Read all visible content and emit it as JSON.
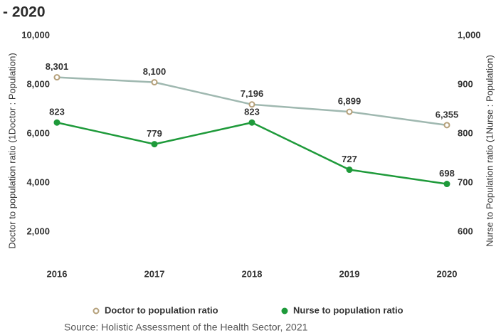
{
  "chart_data": {
    "type": "line",
    "title": "- 2020",
    "y_label": "Doctor to population ratio (1Doctor : Population)",
    "y2_label": "Nurse to Population ratio (1Nurse : Population)",
    "source": "Source: Holistic Assessment of the Health Sector, 2021",
    "categories": [
      "2016",
      "2017",
      "2018",
      "2019",
      "2020"
    ],
    "series": [
      {
        "name": "Doctor to population ratio",
        "color": "#9fb8b0",
        "marker_color": "#b5a07a",
        "marker": "hollow",
        "values": [
          8301,
          8100,
          7196,
          6899,
          6355
        ],
        "value_labels": [
          "8,301",
          "8,100",
          "7,196",
          "6,899",
          "6,355"
        ]
      },
      {
        "name": "Nurse to population ratio",
        "color": "#1e9a3a",
        "marker_color": "#1e9a3a",
        "marker": "filled",
        "axis": "y2",
        "values": [
          823,
          779,
          823,
          727,
          698
        ],
        "value_labels": [
          "823",
          "779",
          "823",
          "727",
          "698"
        ]
      }
    ],
    "ylim": [
      500,
      10000
    ],
    "yticks": [
      {
        "value": 2000,
        "label": "2,000"
      },
      {
        "value": 4000,
        "label": "4,000"
      },
      {
        "value": 6000,
        "label": "6,000"
      },
      {
        "value": 8000,
        "label": "8,000"
      },
      {
        "value": 10000,
        "label": "10,000"
      }
    ],
    "y2lim": [
      525,
      1000
    ],
    "y2ticks": [
      600,
      700,
      800,
      900,
      {
        "value": 1000,
        "label": "1,000"
      }
    ],
    "grid": false,
    "legend": "bottom"
  }
}
